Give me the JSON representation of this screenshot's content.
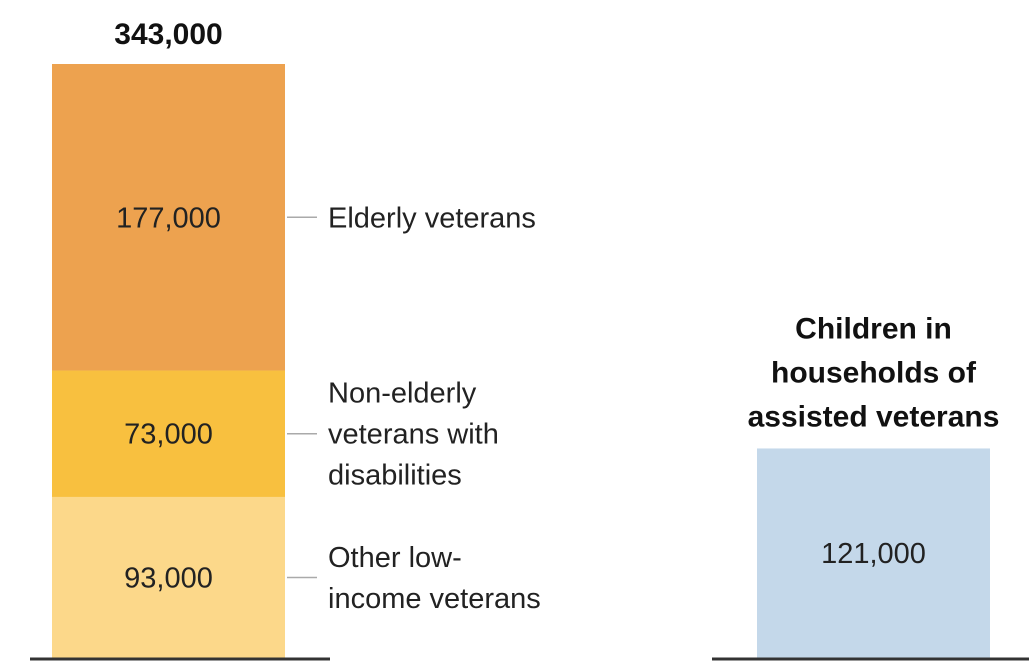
{
  "chart_data": [
    {
      "type": "bar",
      "stacked": true,
      "total_label": "343,000",
      "total": 343000,
      "ylim": [
        0,
        343000
      ],
      "grid": false,
      "segments": [
        {
          "name": "Other low-income veterans",
          "label_lines": [
            "Other low-",
            "income veterans"
          ],
          "value": 93000,
          "value_label": "93,000",
          "color": "#fcd88a"
        },
        {
          "name": "Non-elderly veterans with disabilities",
          "label_lines": [
            "Non-elderly",
            "veterans with",
            "disabilities"
          ],
          "value": 73000,
          "value_label": "73,000",
          "color": "#f8c03f"
        },
        {
          "name": "Elderly veterans",
          "label_lines": [
            "Elderly veterans"
          ],
          "value": 177000,
          "value_label": "177,000",
          "color": "#eda24f"
        }
      ]
    },
    {
      "type": "bar",
      "title_lines": [
        "Children in",
        "households of",
        "assisted veterans"
      ],
      "value": 121000,
      "value_label": "121,000",
      "color": "#c4d8ea",
      "ylim": [
        0,
        343000
      ],
      "grid": false
    }
  ],
  "colors": {
    "baseline": "#333333",
    "leader_line": "#aaaaaa"
  }
}
